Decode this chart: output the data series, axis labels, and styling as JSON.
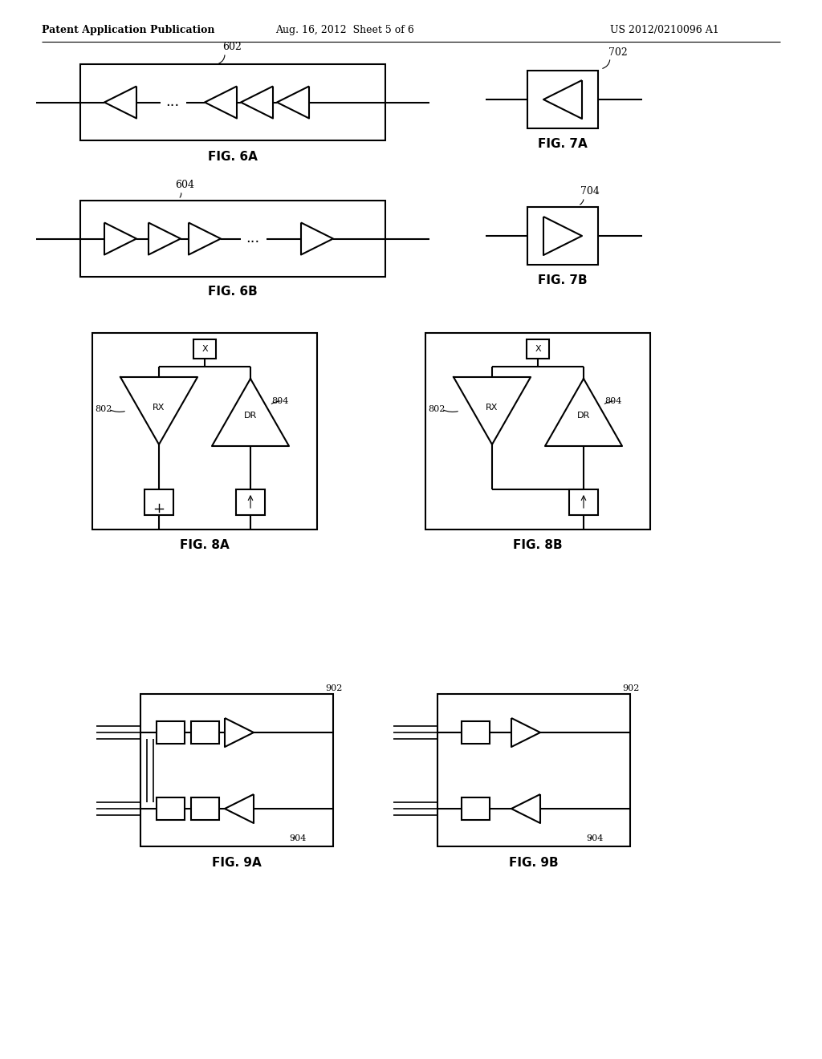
{
  "header_left": "Patent Application Publication",
  "header_mid": "Aug. 16, 2012  Sheet 5 of 6",
  "header_right": "US 2012/0210096 A1",
  "bg_color": "#ffffff",
  "line_color": "#000000"
}
